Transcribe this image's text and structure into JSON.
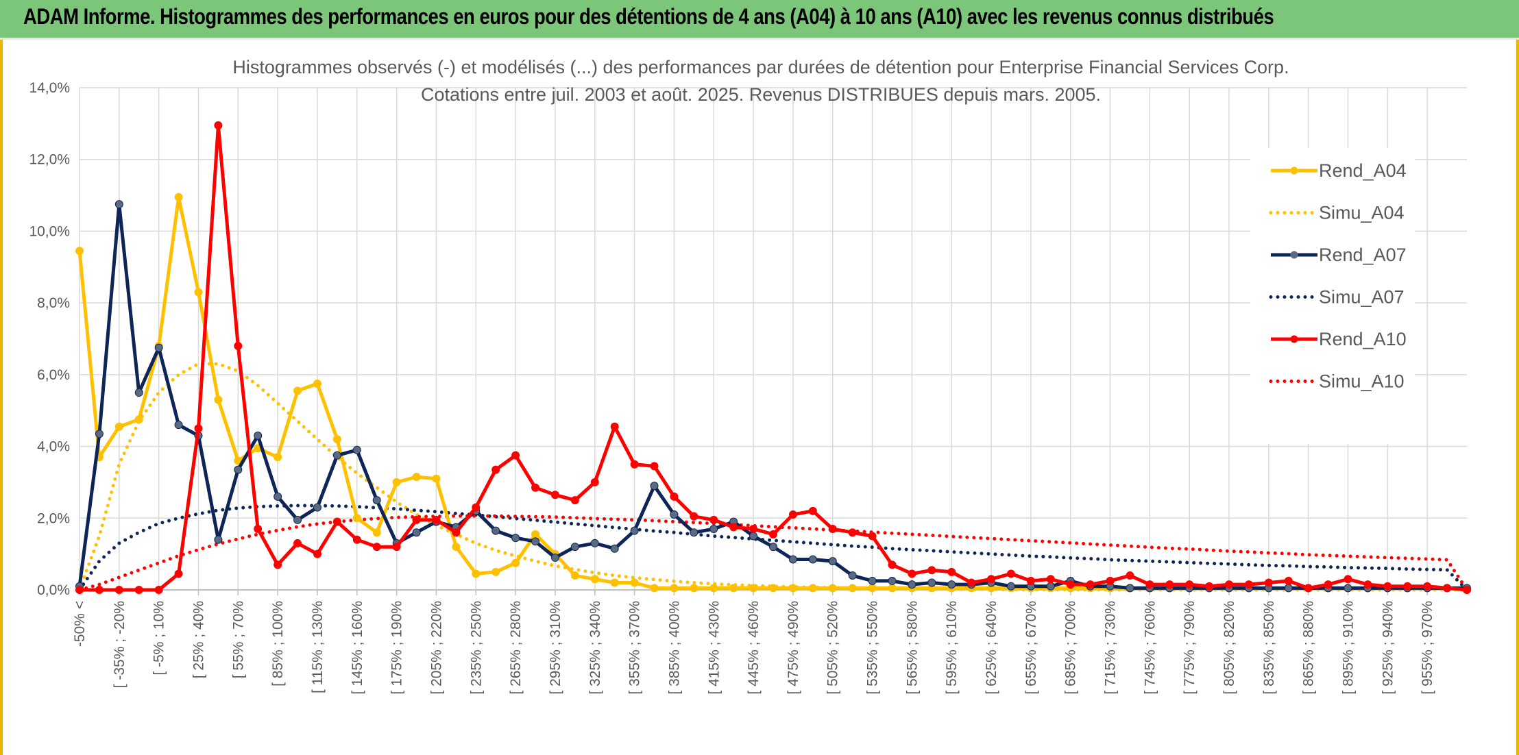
{
  "banner": {
    "title": "ADAM Informe. Histogrammes des performances en euros pour des détentions de 4 ans (A04) à 10 ans (A10) avec les revenus connus distribués"
  },
  "colors": {
    "banner_bg": "#7cc67a",
    "frame_border": "#e6b800",
    "A04": "#ffc000",
    "A07": "#0e2558",
    "A10": "#ff0000",
    "marker_A07": "#5a6a80"
  },
  "chart_data": {
    "type": "line",
    "title": "Histogrammes observés (-) et modélisés (...) des performances par durées de détention pour Enterprise Financial Services Corp.",
    "subtitle": "Cotations entre juil. 2003 et août. 2025. Revenus DISTRIBUES depuis mars. 2005.",
    "xlabel": "",
    "ylabel": "",
    "ylim": [
      0,
      14
    ],
    "yticks": [
      "0,0%",
      "2,0%",
      "4,0%",
      "6,0%",
      "8,0%",
      "10,0%",
      "12,0%",
      "14,0%"
    ],
    "grid": true,
    "legend_position": "right",
    "n_bins": 71,
    "x_tick_labels": [
      "-50% <",
      "[ -35% ; -20%",
      "[ -5% ; 10%",
      "[ 25% ; 40%",
      "[ 55% ; 70%",
      "[ 85% ; 100%",
      "[ 115% ; 130%",
      "[ 145% ; 160%",
      "[ 175% ; 190%",
      "[ 205% ; 220%",
      "[ 235% ; 250%",
      "[ 265% ; 280%",
      "[ 295% ; 310%",
      "[ 325% ; 340%",
      "[ 355% ; 370%",
      "[ 385% ; 400%",
      "[ 415% ; 430%",
      "[ 445% ; 460%",
      "[ 475% ; 490%",
      "[ 505% ; 520%",
      "[ 535% ; 550%",
      "[ 565% ; 580%",
      "[ 595% ; 610%",
      "[ 625% ; 640%",
      "[ 655% ; 670%",
      "[ 685% ; 700%",
      "[ 715% ; 730%",
      "[ 745% ; 760%",
      "[ 775% ; 790%",
      "[ 805% ; 820%",
      "[ 835% ; 850%",
      "[ 865% ; 880%",
      "[ 895% ; 910%",
      "[ 925% ; 940%",
      "[ 955% ; 970%"
    ],
    "series": [
      {
        "name": "Rend_A04",
        "style": "solid",
        "color": "#ffc000",
        "values": [
          9.45,
          3.7,
          4.55,
          4.75,
          6.8,
          10.95,
          8.3,
          5.3,
          3.6,
          3.95,
          3.7,
          5.55,
          5.75,
          4.2,
          2.0,
          1.6,
          3.0,
          3.15,
          3.1,
          1.2,
          0.45,
          0.5,
          0.75,
          1.55,
          1.0,
          0.4,
          0.3,
          0.2,
          0.2,
          0.05,
          0.05,
          0.05,
          0.05,
          0.05,
          0.05,
          0.05,
          0.05,
          0.05,
          0.05,
          0.05,
          0.05,
          0.05,
          0.05,
          0.05,
          0.05,
          0.05,
          0.05,
          0.05,
          0.05,
          0.05,
          0.05,
          0.05,
          0.05,
          0.05,
          0.05,
          0.05,
          0.05,
          0.05,
          0.05,
          0.05,
          0.05,
          0.05,
          0.05,
          0.05,
          0.05,
          0.05,
          0.05,
          0.05,
          0.05,
          0.05,
          0.0
        ]
      },
      {
        "name": "Simu_A04",
        "style": "dotted",
        "color": "#ffc000",
        "values": [
          0.0,
          1.5,
          3.5,
          4.7,
          5.5,
          6.0,
          6.3,
          6.3,
          6.1,
          5.7,
          5.2,
          4.7,
          4.2,
          3.7,
          3.25,
          2.85,
          2.45,
          2.1,
          1.8,
          1.55,
          1.3,
          1.1,
          0.95,
          0.8,
          0.67,
          0.57,
          0.48,
          0.4,
          0.34,
          0.29,
          0.24,
          0.2,
          0.17,
          0.14,
          0.12,
          0.1,
          0.08,
          0.07,
          0.06,
          0.05,
          0.04,
          0.035,
          0.03,
          0.025,
          0.02,
          0.02,
          0.015,
          0.012,
          0.01,
          0.01,
          0.008,
          0.007,
          0.006,
          0.005,
          0.004,
          0.004,
          0.003,
          0.003,
          0.002,
          0.002,
          0.002,
          0.002,
          0.001,
          0.001,
          0.001,
          0.001,
          0.001,
          0.001,
          0.001,
          0.001,
          0.0
        ]
      },
      {
        "name": "Rend_A07",
        "style": "solid",
        "color": "#0e2558",
        "values": [
          0.1,
          4.35,
          10.75,
          5.5,
          6.75,
          4.6,
          4.3,
          1.4,
          3.35,
          4.3,
          2.6,
          1.95,
          2.3,
          3.75,
          3.9,
          2.5,
          1.3,
          1.6,
          1.9,
          1.75,
          2.2,
          1.65,
          1.45,
          1.35,
          0.9,
          1.2,
          1.3,
          1.15,
          1.65,
          2.9,
          2.1,
          1.6,
          1.7,
          1.9,
          1.5,
          1.2,
          0.85,
          0.85,
          0.8,
          0.4,
          0.25,
          0.25,
          0.15,
          0.2,
          0.15,
          0.15,
          0.2,
          0.1,
          0.1,
          0.1,
          0.25,
          0.1,
          0.1,
          0.05,
          0.05,
          0.05,
          0.05,
          0.05,
          0.05,
          0.05,
          0.05,
          0.05,
          0.05,
          0.05,
          0.05,
          0.05,
          0.05,
          0.05,
          0.05,
          0.05,
          0.05
        ]
      },
      {
        "name": "Simu_A07",
        "style": "dotted",
        "color": "#0e2558",
        "values": [
          0.0,
          0.8,
          1.3,
          1.6,
          1.85,
          2.0,
          2.12,
          2.22,
          2.28,
          2.32,
          2.34,
          2.35,
          2.35,
          2.34,
          2.32,
          2.29,
          2.26,
          2.22,
          2.18,
          2.13,
          2.09,
          2.04,
          1.99,
          1.94,
          1.89,
          1.84,
          1.79,
          1.74,
          1.69,
          1.64,
          1.6,
          1.55,
          1.5,
          1.46,
          1.42,
          1.38,
          1.34,
          1.3,
          1.26,
          1.22,
          1.19,
          1.15,
          1.12,
          1.09,
          1.06,
          1.03,
          1.0,
          0.97,
          0.94,
          0.92,
          0.89,
          0.87,
          0.84,
          0.82,
          0.8,
          0.78,
          0.76,
          0.74,
          0.72,
          0.7,
          0.68,
          0.67,
          0.65,
          0.64,
          0.62,
          0.61,
          0.6,
          0.58,
          0.57,
          0.56,
          0.0
        ]
      },
      {
        "name": "Rend_A10",
        "style": "solid",
        "color": "#ff0000",
        "values": [
          0.0,
          0.0,
          0.0,
          0.0,
          0.0,
          0.45,
          4.5,
          12.95,
          6.8,
          1.7,
          0.7,
          1.3,
          1.0,
          1.9,
          1.4,
          1.2,
          1.2,
          1.95,
          1.95,
          1.6,
          2.3,
          3.35,
          3.75,
          2.85,
          2.65,
          2.5,
          3.0,
          4.55,
          3.5,
          3.45,
          2.6,
          2.05,
          1.95,
          1.75,
          1.7,
          1.55,
          2.1,
          2.2,
          1.7,
          1.6,
          1.5,
          0.7,
          0.45,
          0.55,
          0.5,
          0.2,
          0.3,
          0.45,
          0.25,
          0.3,
          0.15,
          0.15,
          0.25,
          0.4,
          0.15,
          0.15,
          0.15,
          0.1,
          0.15,
          0.15,
          0.2,
          0.25,
          0.05,
          0.15,
          0.3,
          0.15,
          0.1,
          0.1,
          0.1,
          0.05,
          0.0
        ]
      },
      {
        "name": "Simu_A10",
        "style": "dotted",
        "color": "#ff0000",
        "values": [
          0.0,
          0.15,
          0.35,
          0.55,
          0.75,
          0.95,
          1.12,
          1.28,
          1.42,
          1.55,
          1.66,
          1.76,
          1.84,
          1.9,
          1.95,
          1.99,
          2.02,
          2.04,
          2.05,
          2.06,
          2.06,
          2.06,
          2.05,
          2.04,
          2.03,
          2.01,
          1.99,
          1.97,
          1.95,
          1.93,
          1.9,
          1.88,
          1.85,
          1.82,
          1.79,
          1.76,
          1.73,
          1.7,
          1.67,
          1.64,
          1.61,
          1.58,
          1.55,
          1.52,
          1.49,
          1.46,
          1.43,
          1.4,
          1.37,
          1.34,
          1.31,
          1.28,
          1.25,
          1.22,
          1.19,
          1.16,
          1.14,
          1.11,
          1.08,
          1.06,
          1.03,
          1.01,
          0.98,
          0.96,
          0.94,
          0.92,
          0.9,
          0.88,
          0.86,
          0.84,
          0.0
        ]
      }
    ]
  }
}
